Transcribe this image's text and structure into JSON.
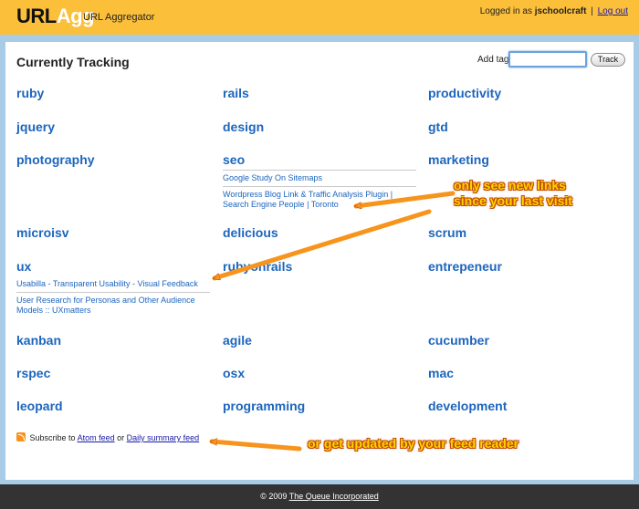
{
  "header": {
    "logo_a": "URL",
    "logo_b": "Agg",
    "tagline": "URL Aggregator",
    "logged_in_prefix": "Logged in as",
    "username": "jschoolcraft",
    "separator": "|",
    "logout": "Log out"
  },
  "main": {
    "title": "Currently Tracking",
    "add_tag_label": "Add tag",
    "tag_input_value": "",
    "track_button": "Track",
    "tags": [
      {
        "name": "ruby"
      },
      {
        "name": "rails"
      },
      {
        "name": "productivity"
      },
      {
        "name": "jquery"
      },
      {
        "name": "design"
      },
      {
        "name": "gtd"
      },
      {
        "name": "photography"
      },
      {
        "name": "seo",
        "links": [
          "Google Study On Sitemaps",
          "Wordpress Blog Link & Traffic Analysis Plugin | Search Engine People | Toronto"
        ]
      },
      {
        "name": "marketing"
      },
      {
        "name": "microisv"
      },
      {
        "name": "delicious"
      },
      {
        "name": "scrum"
      },
      {
        "name": "ux",
        "links": [
          "Usabilla - Transparent Usability - Visual Feedback",
          "User Research for Personas and Other Audience Models :: UXmatters"
        ]
      },
      {
        "name": "rubyonrails"
      },
      {
        "name": "entrepeneur"
      },
      {
        "name": "kanban"
      },
      {
        "name": "agile"
      },
      {
        "name": "cucumber"
      },
      {
        "name": "rspec"
      },
      {
        "name": "osx"
      },
      {
        "name": "mac"
      },
      {
        "name": "leopard"
      },
      {
        "name": "programming"
      },
      {
        "name": "development"
      }
    ],
    "subscribe": {
      "prefix": "Subscribe to",
      "atom": "Atom feed",
      "or": "or",
      "daily": "Daily summary feed"
    }
  },
  "annotations": {
    "new_links_line1": "only see new links",
    "new_links_line2": "since your last visit",
    "feed_reader": "or get updated by your feed reader"
  },
  "footer": {
    "copyright": "© 2009",
    "company": "The Queue Incorporated"
  },
  "colors": {
    "header_bg": "#fbbf3a",
    "tag_link": "#1c65bd",
    "callout_fill": "#ffd400",
    "arrow": "#f7941d",
    "footer_bg": "#333333",
    "page_bg": "#a8cbe6"
  },
  "icons": [
    "rss-icon"
  ]
}
